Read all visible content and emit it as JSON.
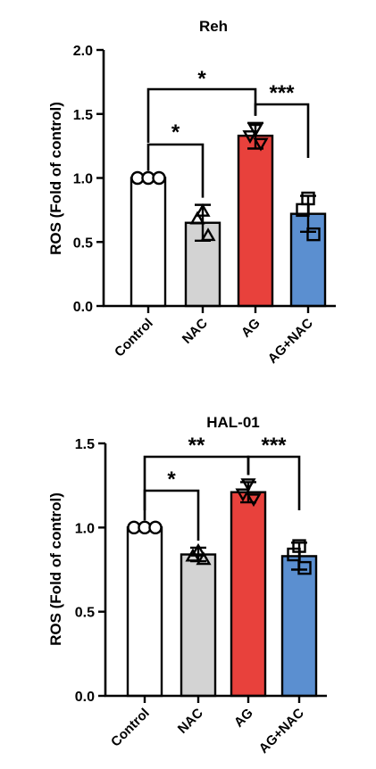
{
  "chart_data": [
    {
      "type": "bar",
      "title": "Reh",
      "ylabel": "ROS (Fold of control)",
      "xlabel": "",
      "categories": [
        "Control",
        "NAC",
        "AG",
        "AG+NAC"
      ],
      "values": [
        1.0,
        0.65,
        1.33,
        0.72
      ],
      "errors": [
        0.0,
        0.14,
        0.1,
        0.14
      ],
      "points": [
        [
          1.0,
          1.0,
          1.0
        ],
        [
          0.74,
          0.68,
          0.55
        ],
        [
          1.38,
          1.33,
          1.27
        ],
        [
          0.84,
          0.75,
          0.56
        ]
      ],
      "point_markers": [
        "circle",
        "triangle",
        "triangle-down",
        "square"
      ],
      "colors": [
        "#ffffff",
        "#d3d3d3",
        "#e8413c",
        "#5b8fd0"
      ],
      "ylim": [
        0,
        2.0
      ],
      "yticks": [
        "0.0",
        "0.5",
        "1.0",
        "1.5",
        "2.0"
      ],
      "comparisons": [
        {
          "from": "Control",
          "to": "NAC",
          "label": "*"
        },
        {
          "from": "Control",
          "to": "AG",
          "label": "*"
        },
        {
          "from": "AG",
          "to": "AG+NAC",
          "label": "***"
        }
      ]
    },
    {
      "type": "bar",
      "title": "HAL-01",
      "ylabel": "ROS (Fold of control)",
      "xlabel": "",
      "categories": [
        "Control",
        "NAC",
        "AG",
        "AG+NAC"
      ],
      "values": [
        1.0,
        0.84,
        1.21,
        0.83
      ],
      "errors": [
        0.0,
        0.04,
        0.06,
        0.08
      ],
      "points": [
        [
          1.0,
          1.0,
          1.0
        ],
        [
          0.86,
          0.83,
          0.81
        ],
        [
          1.26,
          1.2,
          1.17
        ],
        [
          0.89,
          0.84,
          0.76
        ]
      ],
      "point_markers": [
        "circle",
        "triangle",
        "triangle-down",
        "square"
      ],
      "colors": [
        "#ffffff",
        "#d3d3d3",
        "#e8413c",
        "#5b8fd0"
      ],
      "ylim": [
        0,
        1.5
      ],
      "yticks": [
        "0.0",
        "0.5",
        "1.0",
        "1.5"
      ],
      "comparisons": [
        {
          "from": "Control",
          "to": "NAC",
          "label": "*"
        },
        {
          "from": "Control",
          "to": "AG",
          "label": "**"
        },
        {
          "from": "AG",
          "to": "AG+NAC",
          "label": "***"
        }
      ]
    }
  ]
}
